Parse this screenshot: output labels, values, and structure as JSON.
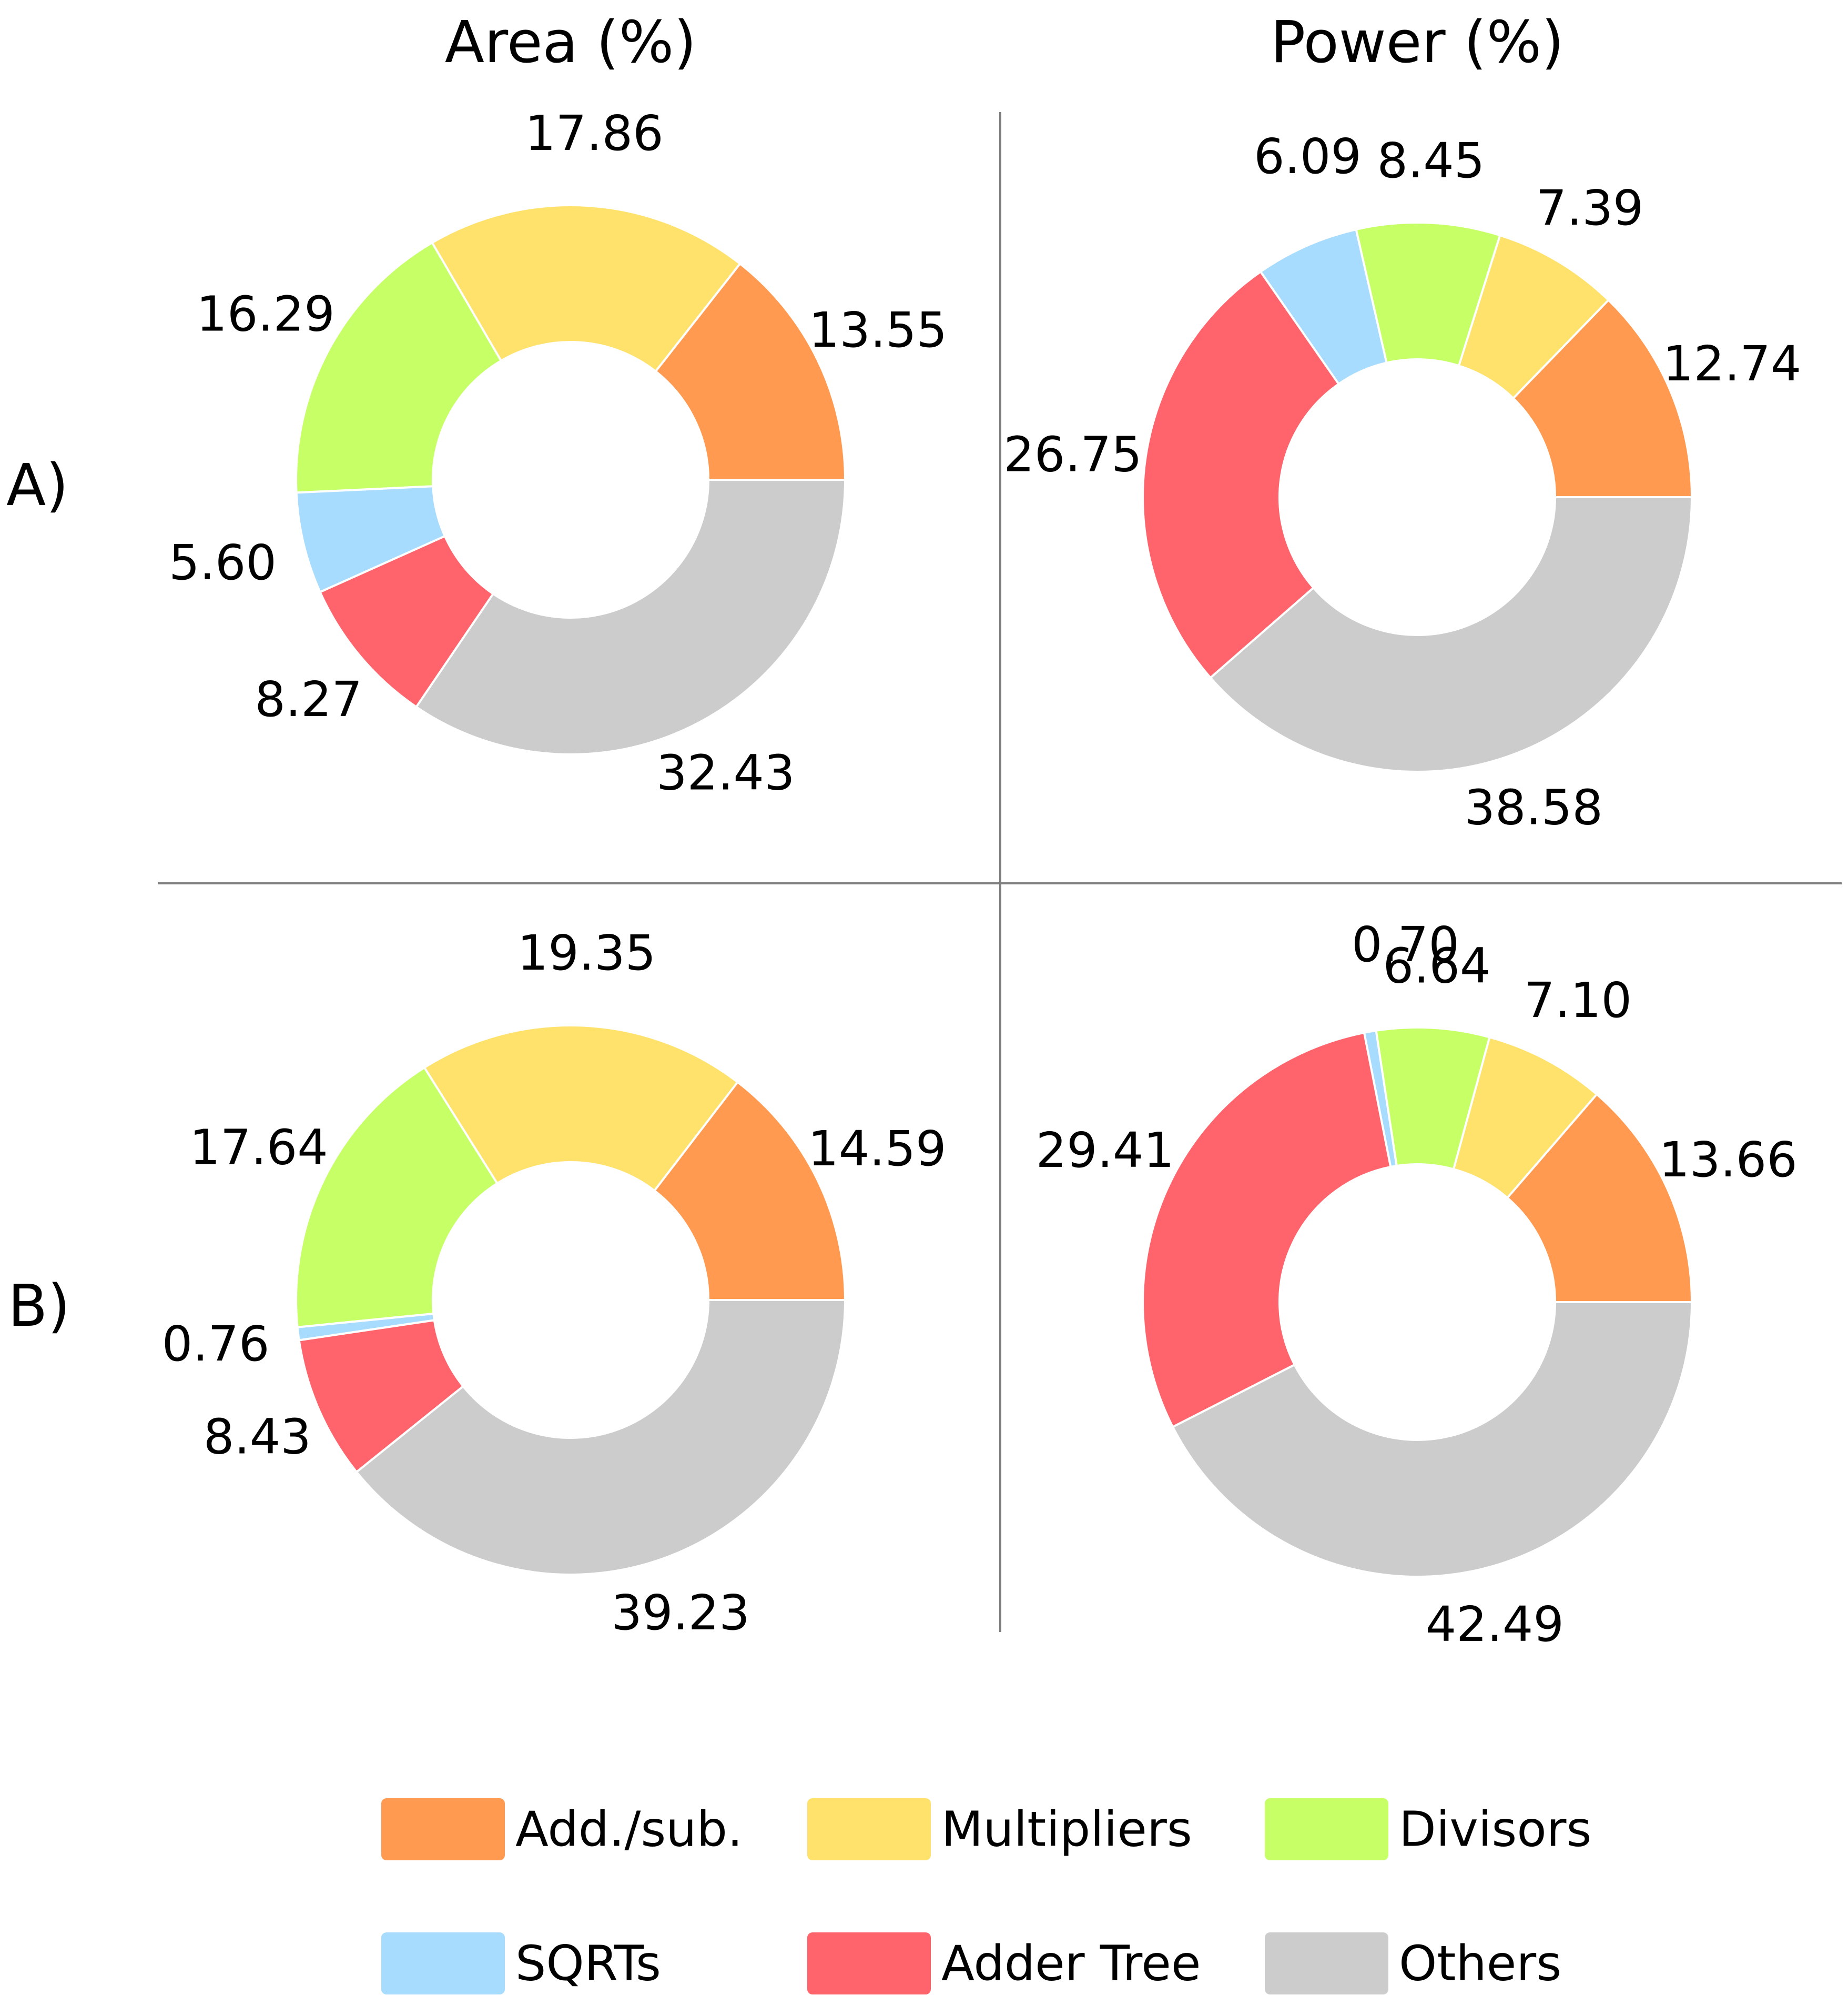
{
  "column_titles": [
    "Area (%)",
    "Power (%)"
  ],
  "row_labels": [
    "A)",
    "B)"
  ],
  "colors": {
    "Add./sub.": "#ff9a50",
    "Multipliers": "#ffe26c",
    "Divisors": "#c6ff66",
    "SQRTs": "#a8dcff",
    "Adder Tree": "#ff636b",
    "Others": "#cccccc"
  },
  "chart_data": [
    {
      "type": "pie",
      "variant": "donut",
      "row": "A)",
      "column": "Area (%)",
      "categories": [
        "Add./sub.",
        "Multipliers",
        "Divisors",
        "SQRTs",
        "Adder Tree",
        "Others"
      ],
      "values": [
        13.55,
        17.86,
        16.29,
        5.6,
        8.27,
        32.43
      ],
      "labels": [
        "13.55",
        "17.86",
        "16.29",
        "5.60",
        "8.27",
        "32.43"
      ]
    },
    {
      "type": "pie",
      "variant": "donut",
      "row": "A)",
      "column": "Power (%)",
      "categories": [
        "Add./sub.",
        "Multipliers",
        "Divisors",
        "SQRTs",
        "Adder Tree",
        "Others"
      ],
      "values": [
        12.74,
        7.39,
        8.45,
        6.09,
        26.75,
        38.58
      ],
      "labels": [
        "12.74",
        "7.39",
        "8.45",
        "6.09",
        "26.75",
        "38.58"
      ]
    },
    {
      "type": "pie",
      "variant": "donut",
      "row": "B)",
      "column": "Area (%)",
      "categories": [
        "Add./sub.",
        "Multipliers",
        "Divisors",
        "SQRTs",
        "Adder Tree",
        "Others"
      ],
      "values": [
        14.59,
        19.35,
        17.64,
        0.76,
        8.43,
        39.23
      ],
      "labels": [
        "14.59",
        "19.35",
        "17.64",
        "0.76",
        "8.43",
        "39.23"
      ]
    },
    {
      "type": "pie",
      "variant": "donut",
      "row": "B)",
      "column": "Power (%)",
      "categories": [
        "Add./sub.",
        "Multipliers",
        "Divisors",
        "SQRTs",
        "Adder Tree",
        "Others"
      ],
      "values": [
        13.66,
        7.1,
        6.64,
        0.7,
        29.41,
        42.49
      ],
      "labels": [
        "13.66",
        "7.10",
        "6.64",
        "0.70",
        "29.41",
        "42.49"
      ]
    }
  ],
  "legend": {
    "placement": "bottom",
    "items": [
      "Add./sub.",
      "Multipliers",
      "Divisors",
      "SQRTs",
      "Adder Tree",
      "Others"
    ]
  }
}
